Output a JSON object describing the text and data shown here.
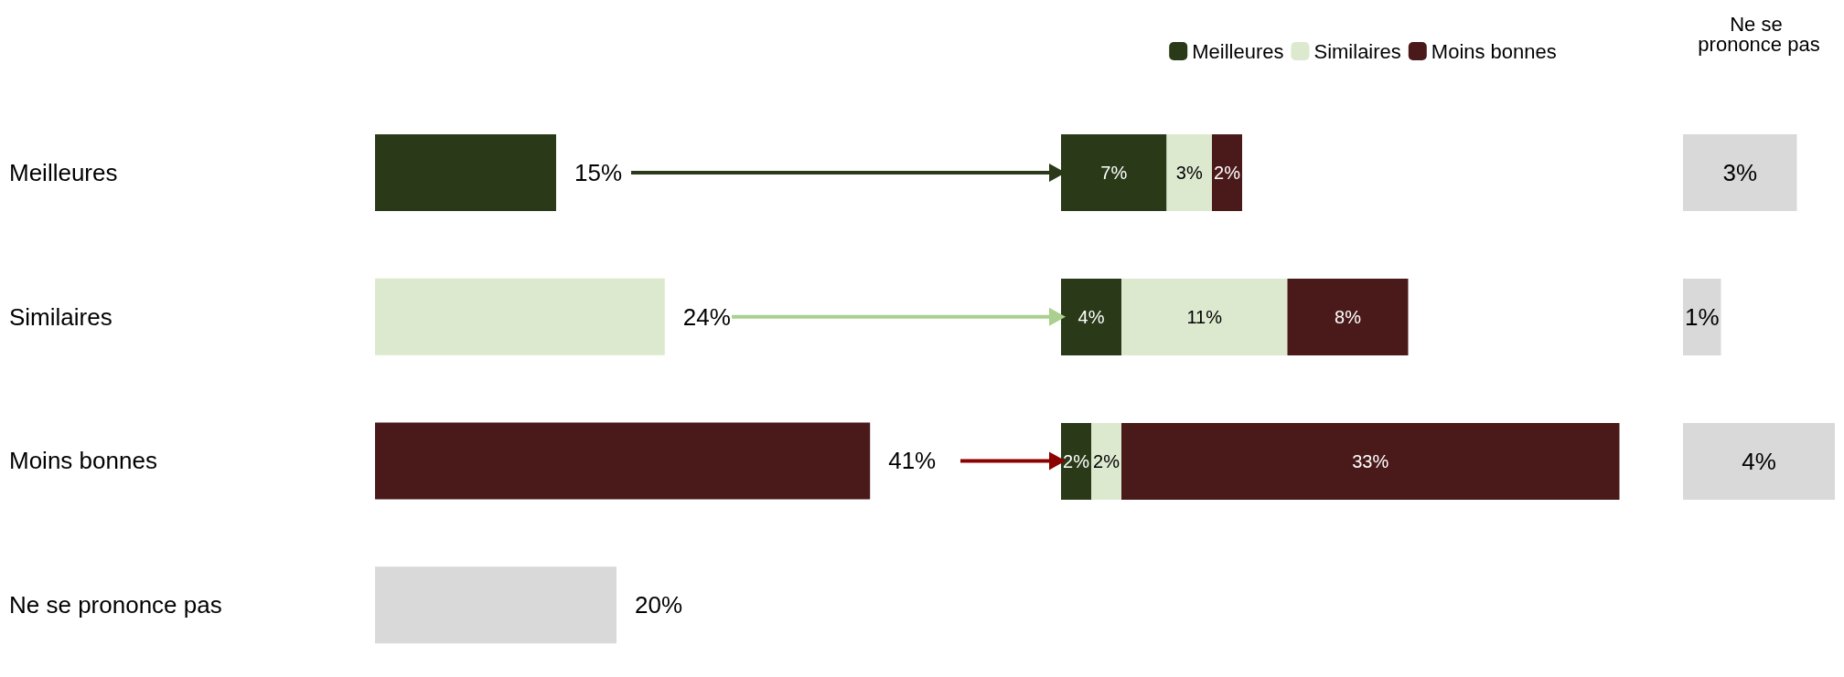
{
  "chart_data": [
    {
      "type": "bar",
      "orientation": "horizontal",
      "categories": [
        "Meilleures",
        "Similaires",
        "Moins bonnes",
        "Ne se prononce pas"
      ],
      "values": [
        15,
        24,
        41,
        20
      ],
      "colors": [
        "#2a3a18",
        "#dce9cf",
        "#4a1a1a",
        "#d9d9d9"
      ],
      "value_labels": [
        "15%",
        "24%",
        "41%",
        "20%"
      ]
    },
    {
      "type": "bar",
      "orientation": "horizontal",
      "stacked": true,
      "categories": [
        null,
        null,
        null
      ],
      "legend": "top",
      "series": [
        {
          "name": "Meilleures",
          "color": "#2a3a18",
          "values": [
            7,
            4,
            2
          ],
          "value_labels": [
            "7%",
            "4%",
            "2%"
          ]
        },
        {
          "name": "Similaires",
          "color": "#dce9cf",
          "values": [
            3,
            11,
            2
          ],
          "value_labels": [
            "3%",
            "11%",
            "2%"
          ]
        },
        {
          "name": "Moins bonnes",
          "color": "#4a1a1a",
          "values": [
            2,
            8,
            33
          ],
          "value_labels": [
            "2%",
            "8%",
            "33%"
          ]
        }
      ]
    },
    {
      "type": "bar",
      "orientation": "horizontal",
      "title": "Ne se prononce pas",
      "categories": [
        null,
        null,
        null
      ],
      "values": [
        3,
        1,
        4
      ],
      "colors": [
        "#d9d9d9",
        "#d9d9d9",
        "#d9d9d9"
      ],
      "value_labels": [
        "3%",
        "1%",
        "4%"
      ]
    }
  ]
}
